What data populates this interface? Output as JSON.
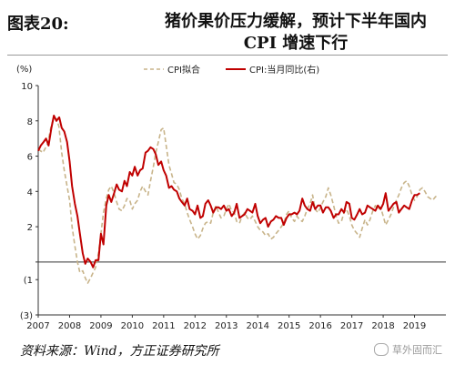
{
  "header": {
    "figure_no": "图表20:",
    "title_line1": "猪价果价压力缓解，预计下半年国内",
    "title_line2": "CPI 增速下行"
  },
  "footer": {
    "source": "资料来源：Wind，方正证券研究所",
    "watermark": "草外固而汇"
  },
  "colors": {
    "cpi_fit": "#c8b48a",
    "cpi_yoy": "#c00000"
  },
  "chart_data": {
    "type": "line",
    "ylabel": "(%)",
    "ylim": [
      -3,
      10
    ],
    "yticks": [
      {
        "value": 10,
        "label": "10"
      },
      {
        "value": 8,
        "label": "8"
      },
      {
        "value": 6,
        "label": "6"
      },
      {
        "value": 4,
        "label": "4"
      },
      {
        "value": 2,
        "label": "2"
      },
      {
        "value": 0,
        "label": ""
      },
      {
        "value": -1,
        "label": "(1"
      },
      {
        "value": -3,
        "label": "(3)"
      }
    ],
    "xlim": [
      2007.0,
      2020.0
    ],
    "xticks": [
      "2007",
      "2008",
      "2009",
      "2010",
      "2011",
      "2012",
      "2013",
      "2014",
      "2015",
      "2016",
      "2017",
      "2018",
      "2019"
    ],
    "legend_position": "top-center",
    "grid": false,
    "series": [
      {
        "name": "CPI拟合",
        "style": "dashed",
        "points": [
          [
            2007.0,
            6.4
          ],
          [
            2007.15,
            6.2
          ],
          [
            2007.3,
            6.7
          ],
          [
            2007.4,
            7.6
          ],
          [
            2007.5,
            8.2
          ],
          [
            2007.58,
            8.1
          ],
          [
            2007.66,
            7.7
          ],
          [
            2007.75,
            6.2
          ],
          [
            2007.83,
            5.2
          ],
          [
            2007.92,
            4.3
          ],
          [
            2008.0,
            3.5
          ],
          [
            2008.08,
            2.0
          ],
          [
            2008.17,
            0.9
          ],
          [
            2008.25,
            0.0
          ],
          [
            2008.33,
            -0.6
          ],
          [
            2008.42,
            -0.5
          ],
          [
            2008.5,
            -0.9
          ],
          [
            2008.58,
            -1.2
          ],
          [
            2008.67,
            -0.9
          ],
          [
            2008.75,
            -0.6
          ],
          [
            2008.83,
            -0.3
          ],
          [
            2008.92,
            0.5
          ],
          [
            2009.0,
            1.6
          ],
          [
            2009.08,
            2.8
          ],
          [
            2009.17,
            3.6
          ],
          [
            2009.25,
            4.1
          ],
          [
            2009.33,
            4.3
          ],
          [
            2009.42,
            3.9
          ],
          [
            2009.5,
            3.4
          ],
          [
            2009.58,
            3.0
          ],
          [
            2009.67,
            2.9
          ],
          [
            2009.75,
            3.2
          ],
          [
            2009.83,
            3.6
          ],
          [
            2009.92,
            3.5
          ],
          [
            2010.0,
            3.0
          ],
          [
            2010.08,
            3.3
          ],
          [
            2010.17,
            3.5
          ],
          [
            2010.25,
            4.0
          ],
          [
            2010.33,
            4.3
          ],
          [
            2010.42,
            4.0
          ],
          [
            2010.5,
            3.8
          ],
          [
            2010.58,
            4.6
          ],
          [
            2010.67,
            5.4
          ],
          [
            2010.75,
            6.2
          ],
          [
            2010.83,
            6.8
          ],
          [
            2010.92,
            7.5
          ],
          [
            2011.0,
            7.6
          ],
          [
            2011.08,
            6.6
          ],
          [
            2011.17,
            5.5
          ],
          [
            2011.25,
            5.0
          ],
          [
            2011.33,
            4.5
          ],
          [
            2011.42,
            4.4
          ],
          [
            2011.5,
            4.1
          ],
          [
            2011.58,
            3.6
          ],
          [
            2011.67,
            3.3
          ],
          [
            2011.75,
            2.8
          ],
          [
            2011.83,
            2.4
          ],
          [
            2011.92,
            2.0
          ],
          [
            2012.0,
            1.6
          ],
          [
            2012.08,
            1.3
          ],
          [
            2012.17,
            1.5
          ],
          [
            2012.25,
            1.9
          ],
          [
            2012.33,
            2.2
          ],
          [
            2012.42,
            2.3
          ],
          [
            2012.5,
            2.2
          ],
          [
            2012.58,
            2.8
          ],
          [
            2012.67,
            3.2
          ],
          [
            2012.75,
            2.8
          ],
          [
            2012.83,
            2.5
          ],
          [
            2012.92,
            2.6
          ],
          [
            2013.0,
            3.0
          ],
          [
            2013.08,
            3.3
          ],
          [
            2013.17,
            2.9
          ],
          [
            2013.25,
            2.8
          ],
          [
            2013.33,
            2.3
          ],
          [
            2013.42,
            2.2
          ],
          [
            2013.5,
            2.6
          ],
          [
            2013.58,
            2.8
          ],
          [
            2013.67,
            2.5
          ],
          [
            2013.75,
            2.4
          ],
          [
            2013.83,
            2.6
          ],
          [
            2013.92,
            2.3
          ],
          [
            2014.0,
            2.0
          ],
          [
            2014.08,
            1.8
          ],
          [
            2014.17,
            1.7
          ],
          [
            2014.25,
            1.5
          ],
          [
            2014.33,
            1.6
          ],
          [
            2014.42,
            1.3
          ],
          [
            2014.5,
            1.4
          ],
          [
            2014.58,
            1.6
          ],
          [
            2014.67,
            1.8
          ],
          [
            2014.75,
            2.0
          ],
          [
            2014.83,
            2.2
          ],
          [
            2014.92,
            2.7
          ],
          [
            2015.0,
            2.9
          ],
          [
            2015.08,
            2.5
          ],
          [
            2015.17,
            2.3
          ],
          [
            2015.25,
            2.6
          ],
          [
            2015.33,
            2.4
          ],
          [
            2015.42,
            2.3
          ],
          [
            2015.5,
            2.6
          ],
          [
            2015.58,
            3.0
          ],
          [
            2015.67,
            3.3
          ],
          [
            2015.75,
            3.8
          ],
          [
            2015.83,
            3.0
          ],
          [
            2015.92,
            2.8
          ],
          [
            2016.0,
            3.1
          ],
          [
            2016.08,
            3.4
          ],
          [
            2016.17,
            3.7
          ],
          [
            2016.25,
            4.2
          ],
          [
            2016.33,
            3.8
          ],
          [
            2016.42,
            3.2
          ],
          [
            2016.5,
            2.6
          ],
          [
            2016.58,
            2.2
          ],
          [
            2016.67,
            2.3
          ],
          [
            2016.75,
            2.8
          ],
          [
            2016.83,
            3.0
          ],
          [
            2016.92,
            2.6
          ],
          [
            2017.0,
            2.1
          ],
          [
            2017.08,
            1.8
          ],
          [
            2017.17,
            1.6
          ],
          [
            2017.25,
            1.4
          ],
          [
            2017.33,
            1.9
          ],
          [
            2017.42,
            2.4
          ],
          [
            2017.5,
            2.1
          ],
          [
            2017.58,
            2.4
          ],
          [
            2017.67,
            2.9
          ],
          [
            2017.75,
            3.2
          ],
          [
            2017.83,
            3.0
          ],
          [
            2017.92,
            3.1
          ],
          [
            2018.0,
            2.6
          ],
          [
            2018.08,
            2.1
          ],
          [
            2018.17,
            2.4
          ],
          [
            2018.25,
            2.7
          ],
          [
            2018.33,
            3.1
          ],
          [
            2018.42,
            3.5
          ],
          [
            2018.5,
            3.8
          ],
          [
            2018.58,
            4.2
          ],
          [
            2018.67,
            4.5
          ],
          [
            2018.75,
            4.6
          ],
          [
            2018.83,
            4.3
          ],
          [
            2018.92,
            3.8
          ],
          [
            2019.0,
            3.5
          ],
          [
            2019.08,
            3.7
          ],
          [
            2019.17,
            4.1
          ],
          [
            2019.25,
            4.2
          ],
          [
            2019.33,
            4.0
          ],
          [
            2019.42,
            3.7
          ],
          [
            2019.5,
            3.6
          ],
          [
            2019.58,
            3.5
          ],
          [
            2019.67,
            3.7
          ],
          [
            2019.75,
            3.8
          ]
        ]
      },
      {
        "name": "CPI:当月同比(右)",
        "style": "solid",
        "points": [
          [
            2007.0,
            6.3
          ],
          [
            2007.08,
            6.6
          ],
          [
            2007.17,
            6.8
          ],
          [
            2007.25,
            7.0
          ],
          [
            2007.33,
            6.6
          ],
          [
            2007.42,
            7.6
          ],
          [
            2007.5,
            8.3
          ],
          [
            2007.58,
            8.0
          ],
          [
            2007.67,
            8.2
          ],
          [
            2007.75,
            7.6
          ],
          [
            2007.83,
            7.4
          ],
          [
            2007.92,
            6.8
          ],
          [
            2008.0,
            5.7
          ],
          [
            2008.08,
            4.3
          ],
          [
            2008.17,
            3.3
          ],
          [
            2008.25,
            2.6
          ],
          [
            2008.33,
            1.6
          ],
          [
            2008.42,
            0.5
          ],
          [
            2008.5,
            -0.1
          ],
          [
            2008.58,
            0.2
          ],
          [
            2008.67,
            0.0
          ],
          [
            2008.75,
            -0.3
          ],
          [
            2008.83,
            0.1
          ],
          [
            2008.92,
            0.1
          ],
          [
            2009.0,
            1.6
          ],
          [
            2009.08,
            1.0
          ],
          [
            2009.17,
            3.2
          ],
          [
            2009.25,
            3.8
          ],
          [
            2009.33,
            3.4
          ],
          [
            2009.42,
            3.9
          ],
          [
            2009.5,
            4.4
          ],
          [
            2009.58,
            4.1
          ],
          [
            2009.67,
            4.0
          ],
          [
            2009.75,
            4.6
          ],
          [
            2009.83,
            4.3
          ],
          [
            2009.92,
            5.1
          ],
          [
            2010.0,
            4.9
          ],
          [
            2010.08,
            5.4
          ],
          [
            2010.17,
            4.9
          ],
          [
            2010.25,
            5.2
          ],
          [
            2010.33,
            5.3
          ],
          [
            2010.42,
            6.2
          ],
          [
            2010.5,
            6.3
          ],
          [
            2010.58,
            6.5
          ],
          [
            2010.67,
            6.4
          ],
          [
            2010.75,
            6.1
          ],
          [
            2010.83,
            5.5
          ],
          [
            2010.92,
            5.7
          ],
          [
            2011.0,
            5.2
          ],
          [
            2011.08,
            4.9
          ],
          [
            2011.17,
            4.2
          ],
          [
            2011.25,
            4.3
          ],
          [
            2011.33,
            4.1
          ],
          [
            2011.42,
            4.0
          ],
          [
            2011.5,
            3.6
          ],
          [
            2011.58,
            3.4
          ],
          [
            2011.67,
            3.2
          ],
          [
            2011.75,
            3.6
          ],
          [
            2011.83,
            3.0
          ],
          [
            2011.92,
            2.9
          ],
          [
            2012.0,
            2.7
          ],
          [
            2012.08,
            3.2
          ],
          [
            2012.17,
            2.5
          ],
          [
            2012.25,
            2.6
          ],
          [
            2012.33,
            3.3
          ],
          [
            2012.42,
            3.5
          ],
          [
            2012.5,
            3.2
          ],
          [
            2012.58,
            2.8
          ],
          [
            2012.67,
            3.1
          ],
          [
            2012.75,
            3.1
          ],
          [
            2012.83,
            3.0
          ],
          [
            2012.92,
            3.2
          ],
          [
            2013.0,
            2.9
          ],
          [
            2013.08,
            3.0
          ],
          [
            2013.17,
            2.6
          ],
          [
            2013.25,
            2.8
          ],
          [
            2013.33,
            3.3
          ],
          [
            2013.42,
            2.5
          ],
          [
            2013.5,
            2.6
          ],
          [
            2013.58,
            2.7
          ],
          [
            2013.67,
            3.0
          ],
          [
            2013.75,
            2.9
          ],
          [
            2013.83,
            2.8
          ],
          [
            2013.92,
            3.3
          ],
          [
            2014.0,
            2.6
          ],
          [
            2014.08,
            2.2
          ],
          [
            2014.17,
            2.4
          ],
          [
            2014.25,
            2.5
          ],
          [
            2014.33,
            2.0
          ],
          [
            2014.42,
            2.3
          ],
          [
            2014.5,
            2.4
          ],
          [
            2014.58,
            2.6
          ],
          [
            2014.67,
            2.5
          ],
          [
            2014.75,
            2.5
          ],
          [
            2014.83,
            2.1
          ],
          [
            2014.92,
            2.5
          ],
          [
            2015.0,
            2.7
          ],
          [
            2015.08,
            2.7
          ],
          [
            2015.17,
            2.8
          ],
          [
            2015.25,
            2.7
          ],
          [
            2015.33,
            2.9
          ],
          [
            2015.42,
            3.6
          ],
          [
            2015.5,
            3.2
          ],
          [
            2015.58,
            3.0
          ],
          [
            2015.67,
            2.9
          ],
          [
            2015.75,
            3.4
          ],
          [
            2015.83,
            3.0
          ],
          [
            2015.92,
            3.2
          ],
          [
            2016.0,
            3.2
          ],
          [
            2016.08,
            2.8
          ],
          [
            2016.17,
            3.1
          ],
          [
            2016.25,
            3.1
          ],
          [
            2016.33,
            2.9
          ],
          [
            2016.42,
            2.5
          ],
          [
            2016.5,
            2.7
          ],
          [
            2016.58,
            2.7
          ],
          [
            2016.67,
            3.0
          ],
          [
            2016.75,
            2.8
          ],
          [
            2016.83,
            3.4
          ],
          [
            2016.92,
            3.3
          ],
          [
            2017.0,
            2.5
          ],
          [
            2017.08,
            2.4
          ],
          [
            2017.17,
            2.7
          ],
          [
            2017.25,
            3.0
          ],
          [
            2017.33,
            2.7
          ],
          [
            2017.42,
            2.8
          ],
          [
            2017.5,
            3.2
          ],
          [
            2017.58,
            3.1
          ],
          [
            2017.67,
            3.0
          ],
          [
            2017.75,
            2.9
          ],
          [
            2017.83,
            3.2
          ],
          [
            2017.92,
            3.0
          ],
          [
            2018.0,
            3.3
          ],
          [
            2018.08,
            3.9
          ],
          [
            2018.17,
            2.9
          ],
          [
            2018.25,
            3.1
          ],
          [
            2018.33,
            3.3
          ],
          [
            2018.42,
            3.4
          ],
          [
            2018.5,
            2.8
          ],
          [
            2018.58,
            3.0
          ],
          [
            2018.67,
            3.2
          ],
          [
            2018.75,
            3.1
          ],
          [
            2018.83,
            3.0
          ],
          [
            2018.92,
            3.5
          ],
          [
            2019.0,
            3.8
          ],
          [
            2019.08,
            3.8
          ],
          [
            2019.17,
            3.9
          ]
        ]
      }
    ]
  }
}
